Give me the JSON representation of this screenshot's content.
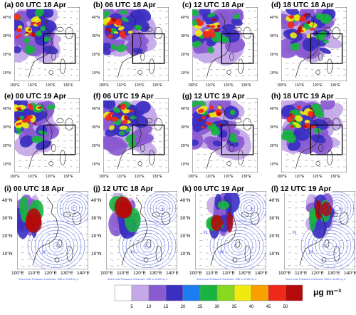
{
  "top_panels": [
    {
      "title": "(a) 00 UTC 18 Apr",
      "variant": 0
    },
    {
      "title": "(b) 06 UTC 18 Apr",
      "variant": 1
    },
    {
      "title": "(c) 12 UTC 18 Apr",
      "variant": 2
    },
    {
      "title": "(d) 18 UTC 18 Apr",
      "variant": 3
    },
    {
      "title": "(e) 00 UTC 19 Apr",
      "variant": 4
    },
    {
      "title": "(f) 06 UTC 19 Apr",
      "variant": 5
    },
    {
      "title": "(g) 12 UTC 19 Apr",
      "variant": 6
    },
    {
      "title": "(h) 18 UTC 19 Apr",
      "variant": 7
    }
  ],
  "bottom_panels": [
    {
      "title": "(i) 00 UTC 18 Apr",
      "variant": 0
    },
    {
      "title": "(j) 12 UTC 18 Apr",
      "variant": 1
    },
    {
      "title": "(k) 00 UTC 19 Apr",
      "variant": 2
    },
    {
      "title": "(l) 12 UTC 19 Apr",
      "variant": 3
    }
  ],
  "top_lat_labels": [
    "40°N",
    "30°N",
    "20°N",
    "10°N"
  ],
  "top_lon_labels": [
    "100°E",
    "110°E",
    "120°E",
    "130°E"
  ],
  "bottom_lat_labels": [
    "40°N",
    "30°N",
    "20°N",
    "10°N"
  ],
  "bottom_lon_labels": [
    "100°E",
    "110°E",
    "120°E",
    "130°E",
    "140°E"
  ],
  "contour_caption": "Sea Level Pressure Contours: 900 to 1100 by 4",
  "pressure_labels": {
    "high": "H",
    "low": "L"
  },
  "color_scale": {
    "boundaries": [
      "5",
      "10",
      "15",
      "20",
      "25",
      "30",
      "35",
      "40",
      "45",
      "50"
    ],
    "colors": [
      "#ffffff",
      "#c4a8e8",
      "#8a5ad0",
      "#3a2fc0",
      "#1c7cf0",
      "#18b440",
      "#88d820",
      "#f0ea10",
      "#f8a000",
      "#f02818",
      "#b40a0a"
    ],
    "units": "μg m⁻³"
  },
  "map_colors": {
    "ocean": "#ffffff",
    "coast": "#222222",
    "vectors": "#666666",
    "isobar": "#3c50e0",
    "box": "#000000"
  }
}
